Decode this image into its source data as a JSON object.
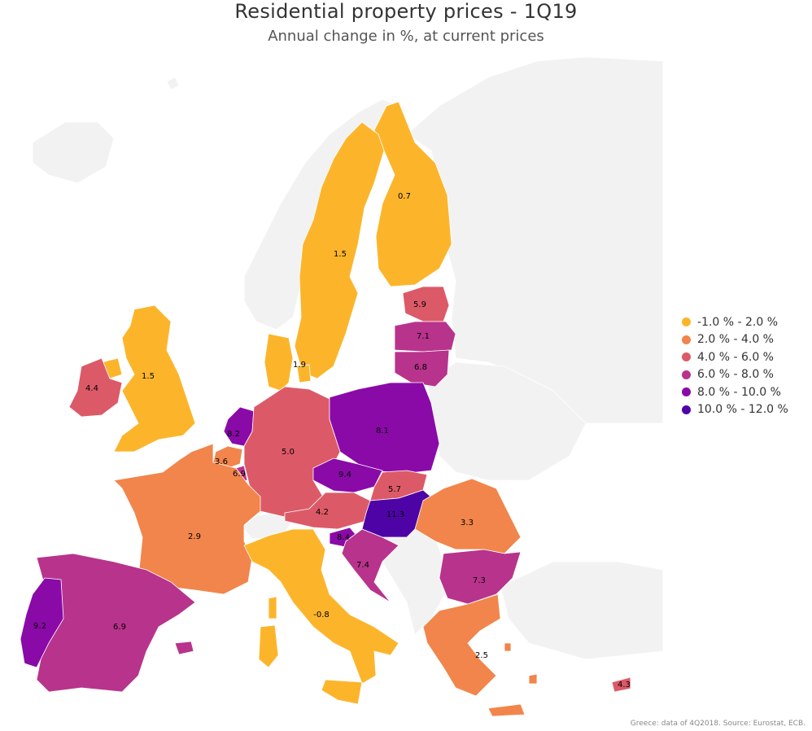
{
  "title": "Residential property prices - 1Q19",
  "subtitle": "Annual change in %, at current prices",
  "source": "Greece: data of 4Q2018. Source: Eurostat, ECB.",
  "colors": {
    "background_land": "#f2f2f2",
    "border": "#ffffff",
    "label": "#000000"
  },
  "legend": [
    {
      "label": "-1.0 % - 2.0 %",
      "color": "#fcb52b"
    },
    {
      "label": "2.0 % - 4.0 %",
      "color": "#f1854b"
    },
    {
      "label": "4.0 % - 6.0 %",
      "color": "#dc5a67"
    },
    {
      "label": "6.0 % - 8.0 %",
      "color": "#b8338c"
    },
    {
      "label": "8.0 % - 10.0 %",
      "color": "#8a0aa8"
    },
    {
      "label": "10.0 % - 12.0 %",
      "color": "#4e03a6"
    }
  ],
  "countries": [
    {
      "id": "fi",
      "value": "0.7",
      "cls": 0
    },
    {
      "id": "se",
      "value": "1.5",
      "cls": 0
    },
    {
      "id": "uk",
      "value": "1.5",
      "cls": 0
    },
    {
      "id": "dk",
      "value": "1.9",
      "cls": 0
    },
    {
      "id": "it",
      "value": "-0.8",
      "cls": 0
    },
    {
      "id": "ie",
      "value": "4.4",
      "cls": 2
    },
    {
      "id": "ee",
      "value": "5.9",
      "cls": 2
    },
    {
      "id": "lv",
      "value": "7.1",
      "cls": 3
    },
    {
      "id": "lt",
      "value": "6.8",
      "cls": 3
    },
    {
      "id": "nl",
      "value": "8.2",
      "cls": 4
    },
    {
      "id": "be",
      "value": "3.6",
      "cls": 1
    },
    {
      "id": "lu",
      "value": "6.9",
      "cls": 3
    },
    {
      "id": "de",
      "value": "5.0",
      "cls": 2
    },
    {
      "id": "pl",
      "value": "8.1",
      "cls": 4
    },
    {
      "id": "cz",
      "value": "9.4",
      "cls": 4
    },
    {
      "id": "sk",
      "value": "5.7",
      "cls": 2
    },
    {
      "id": "at",
      "value": "4.2",
      "cls": 2
    },
    {
      "id": "hu",
      "value": "11.3",
      "cls": 5
    },
    {
      "id": "ro",
      "value": "3.3",
      "cls": 1
    },
    {
      "id": "fr",
      "value": "2.9",
      "cls": 1
    },
    {
      "id": "si",
      "value": "8.4",
      "cls": 4
    },
    {
      "id": "hr",
      "value": "7.4",
      "cls": 3
    },
    {
      "id": "bg",
      "value": "7.3",
      "cls": 3
    },
    {
      "id": "pt",
      "value": "9.2",
      "cls": 4
    },
    {
      "id": "es",
      "value": "6.9",
      "cls": 3
    },
    {
      "id": "gr",
      "value": "2.5",
      "cls": 1
    },
    {
      "id": "cy",
      "value": "4.3",
      "cls": 2
    }
  ]
}
